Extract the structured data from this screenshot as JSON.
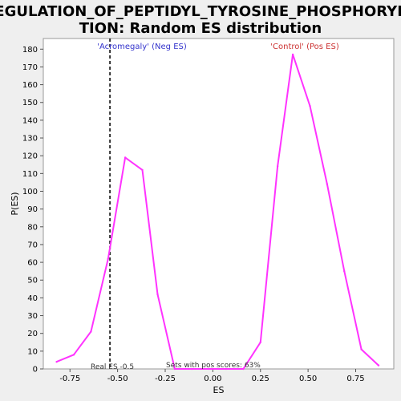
{
  "chart_data": {
    "type": "line",
    "title": "REGULATION_OF_PEPTIDYL_TYROSINE_PHOSPHORYLATION: Random ES distribution",
    "title_lines": [
      "REGULATION_OF_PEPTIDYL_TYROSINE_PHOSPHORYLA",
      "TION: Random ES distribution"
    ],
    "xlabel": "ES",
    "ylabel": "P(ES)",
    "xlim": [
      -0.89,
      0.95
    ],
    "ylim": [
      0,
      186
    ],
    "x_ticks": [
      -0.75,
      -0.5,
      -0.25,
      0.0,
      0.25,
      0.5,
      0.75
    ],
    "x_tick_labels": [
      "-0.75",
      "-0.50",
      "-0.25",
      "0.00",
      "0.25",
      "0.50",
      "0.75"
    ],
    "y_ticks": [
      0,
      10,
      20,
      30,
      40,
      50,
      60,
      70,
      80,
      90,
      100,
      110,
      120,
      130,
      140,
      150,
      160,
      170,
      180
    ],
    "grid": false,
    "line_color": "#ff33ff",
    "series": [
      {
        "x": [
          -0.82,
          -0.73,
          -0.64,
          -0.55,
          -0.46,
          -0.37,
          -0.29,
          -0.2,
          -0.11,
          -0.02,
          0.07,
          0.16,
          0.25,
          0.34,
          0.42,
          0.51,
          0.6,
          0.69,
          0.78,
          0.87
        ],
        "y": [
          4,
          8,
          21,
          62,
          119,
          112,
          42,
          0,
          0,
          0,
          0,
          0,
          15,
          114,
          177,
          148,
          104,
          55,
          11,
          2
        ]
      }
    ],
    "real_es": -0.54,
    "annotations": {
      "neg_label": "'Acromegaly' (Neg ES)",
      "pos_label": "'Control' (Pos ES)",
      "real_es_label": "Real ES -0.5",
      "pos_scores_label": "Sets with pos scores: 63%"
    },
    "colors": {
      "neg_label": "#3333cc",
      "pos_label": "#cc3333",
      "real_es_line": "#333333"
    }
  }
}
